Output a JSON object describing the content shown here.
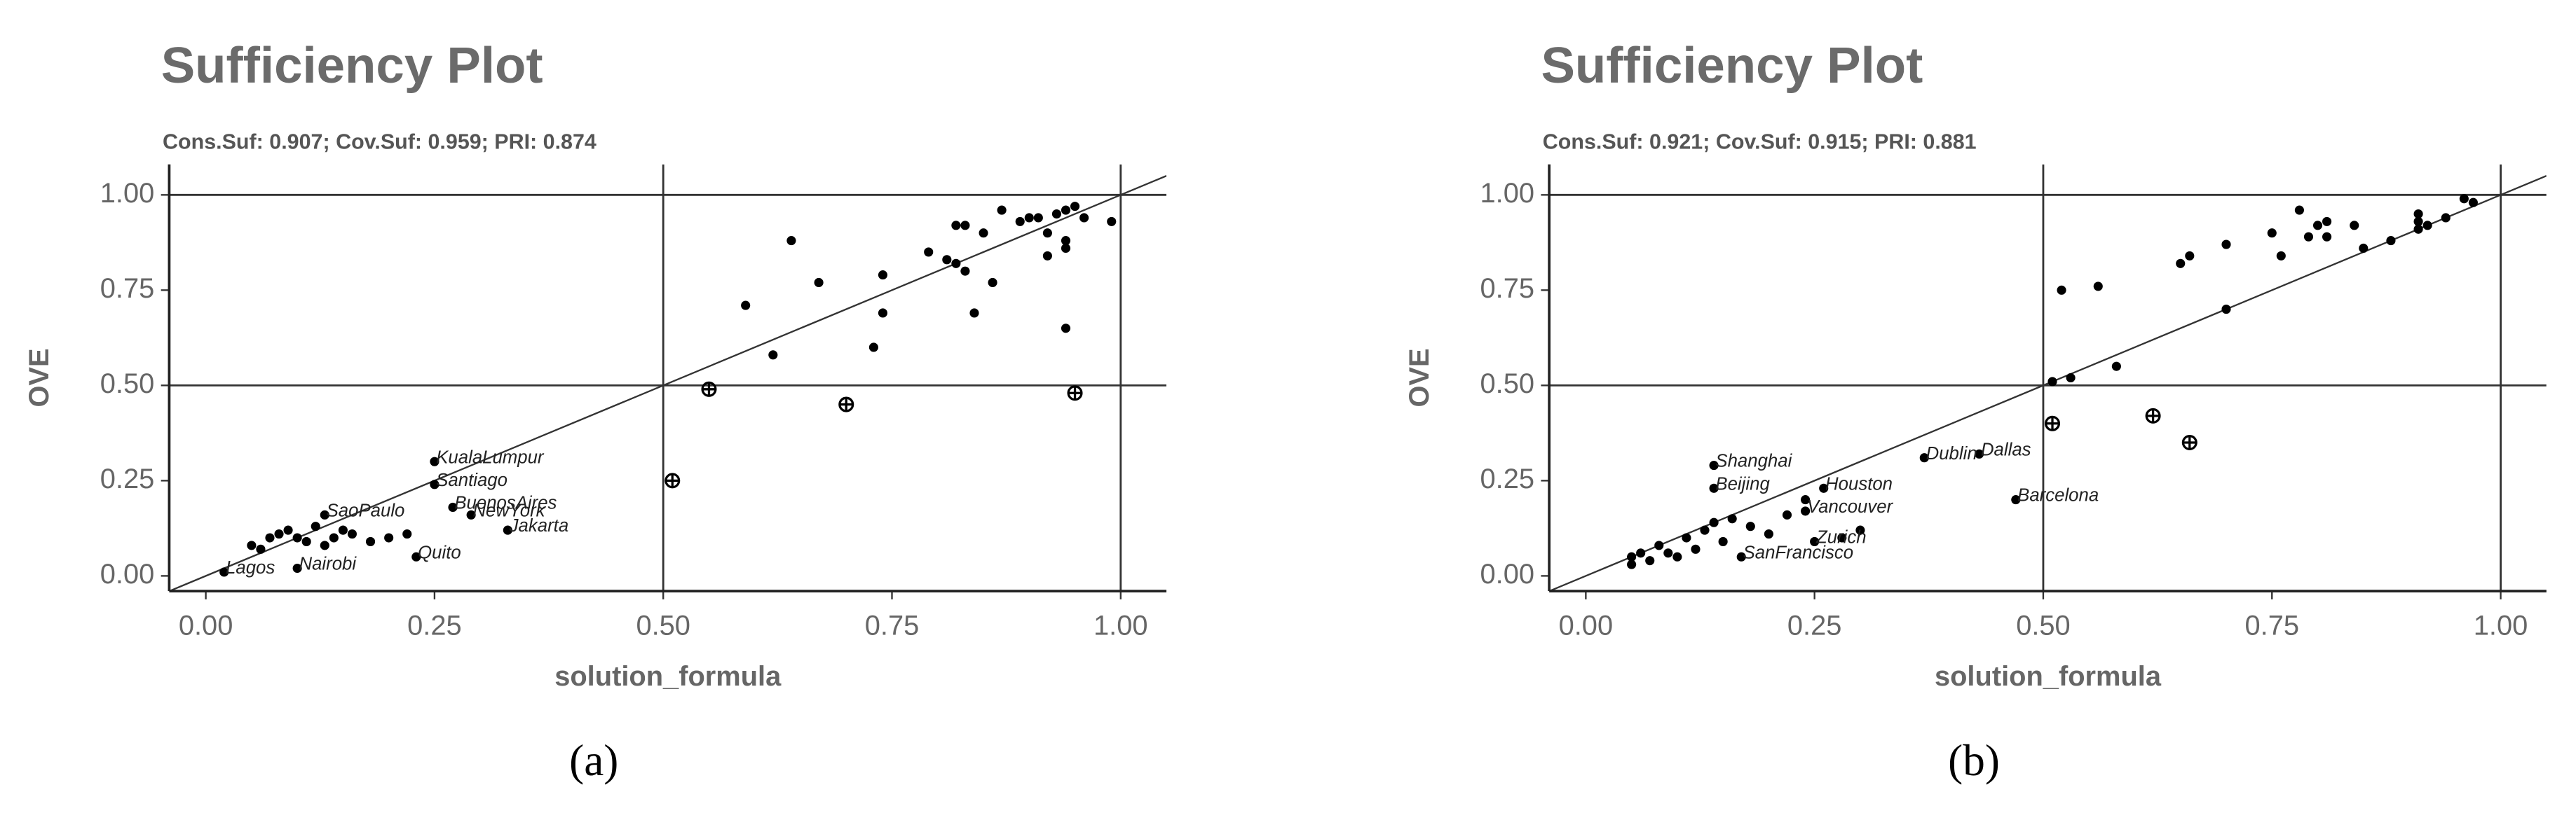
{
  "chart_data": [
    {
      "type": "scatter",
      "title": "Sufficiency Plot",
      "subtitle": "Cons.Suf: 0.907; Cov.Suf: 0.959; PRI: 0.874",
      "x_label": "solution_formula",
      "y_label": "OVE",
      "caption": "(a)",
      "xlim": [
        -0.04,
        1.05
      ],
      "ylim": [
        -0.04,
        1.08
      ],
      "xticks": [
        {
          "value": 0,
          "label": "0.00"
        },
        {
          "value": 0.25,
          "label": "0.25"
        },
        {
          "value": 0.5,
          "label": "0.50"
        },
        {
          "value": 0.75,
          "label": "0.75"
        },
        {
          "value": 1,
          "label": "1.00"
        }
      ],
      "yticks": [
        {
          "value": 0,
          "label": "0.00"
        },
        {
          "value": 0.25,
          "label": "0.25"
        },
        {
          "value": 0.5,
          "label": "0.50"
        },
        {
          "value": 0.75,
          "label": "0.75"
        },
        {
          "value": 1,
          "label": "1.00"
        }
      ],
      "reference_x": [
        0.5,
        1
      ],
      "reference_y": [
        0.5,
        1
      ],
      "diagonal": true,
      "series": [
        {
          "marker": "dot",
          "color": "#000000",
          "x": [
            0.59,
            0.62,
            0.64,
            0.67,
            0.73,
            0.74,
            0.74,
            0.79,
            0.81,
            0.82,
            0.82,
            0.83,
            0.83,
            0.84,
            0.85,
            0.86,
            0.87,
            0.89,
            0.9,
            0.91,
            0.92,
            0.92,
            0.93,
            0.94,
            0.94,
            0.94,
            0.94,
            0.95,
            0.96,
            0.99,
            0.25,
            0.25,
            0.27,
            0.29,
            0.33,
            0.23,
            0.1,
            0.02,
            0.13,
            0.05,
            0.06,
            0.07,
            0.08,
            0.09,
            0.1,
            0.11,
            0.12,
            0.13,
            0.14,
            0.15,
            0.16,
            0.18,
            0.2,
            0.22
          ],
          "y": [
            0.71,
            0.58,
            0.88,
            0.77,
            0.6,
            0.69,
            0.79,
            0.85,
            0.83,
            0.92,
            0.82,
            0.8,
            0.92,
            0.69,
            0.9,
            0.77,
            0.96,
            0.93,
            0.94,
            0.94,
            0.9,
            0.84,
            0.95,
            0.96,
            0.88,
            0.86,
            0.65,
            0.97,
            0.94,
            0.93,
            0.3,
            0.24,
            0.18,
            0.16,
            0.12,
            0.05,
            0.02,
            0.01,
            0.16,
            0.08,
            0.07,
            0.1,
            0.11,
            0.12,
            0.1,
            0.09,
            0.13,
            0.08,
            0.1,
            0.12,
            0.11,
            0.09,
            0.1,
            0.11
          ],
          "labels": [
            null,
            null,
            null,
            null,
            null,
            null,
            null,
            null,
            null,
            null,
            null,
            null,
            null,
            null,
            null,
            null,
            null,
            null,
            null,
            null,
            null,
            null,
            null,
            null,
            null,
            null,
            null,
            null,
            null,
            null,
            "KualaLumpur",
            "Santiago",
            "BuenosAires",
            "NewYork",
            "Jakarta",
            "Quito",
            "Nairobi",
            "Lagos",
            "SaoPaulo",
            null,
            null,
            null,
            null,
            null,
            null,
            null,
            null,
            null,
            null,
            null,
            null,
            null,
            null,
            null
          ]
        },
        {
          "marker": "cross",
          "color": "#000000",
          "x": [
            0.55,
            0.7,
            0.51,
            0.95
          ],
          "y": [
            0.49,
            0.45,
            0.25,
            0.48
          ]
        }
      ]
    },
    {
      "type": "scatter",
      "title": "Sufficiency Plot",
      "subtitle": "Cons.Suf: 0.921; Cov.Suf: 0.915; PRI: 0.881",
      "x_label": "solution_formula",
      "y_label": "OVE",
      "caption": "(b)",
      "xlim": [
        -0.04,
        1.05
      ],
      "ylim": [
        -0.04,
        1.08
      ],
      "xticks": [
        {
          "value": 0,
          "label": "0.00"
        },
        {
          "value": 0.25,
          "label": "0.25"
        },
        {
          "value": 0.5,
          "label": "0.50"
        },
        {
          "value": 0.75,
          "label": "0.75"
        },
        {
          "value": 1,
          "label": "1.00"
        }
      ],
      "yticks": [
        {
          "value": 0,
          "label": "0.00"
        },
        {
          "value": 0.25,
          "label": "0.25"
        },
        {
          "value": 0.5,
          "label": "0.50"
        },
        {
          "value": 0.75,
          "label": "0.75"
        },
        {
          "value": 1,
          "label": "1.00"
        }
      ],
      "reference_x": [
        0.5,
        1
      ],
      "reference_y": [
        0.5,
        1
      ],
      "diagonal": true,
      "series": [
        {
          "marker": "dot",
          "color": "#000000",
          "x": [
            0.52,
            0.56,
            0.58,
            0.53,
            0.51,
            0.65,
            0.66,
            0.7,
            0.7,
            0.75,
            0.76,
            0.78,
            0.79,
            0.8,
            0.81,
            0.81,
            0.84,
            0.85,
            0.88,
            0.91,
            0.91,
            0.91,
            0.92,
            0.94,
            0.96,
            0.97,
            0.14,
            0.14,
            0.37,
            0.43,
            0.47,
            0.26,
            0.24,
            0.17,
            0.25,
            0.05,
            0.05,
            0.06,
            0.07,
            0.08,
            0.09,
            0.1,
            0.11,
            0.12,
            0.13,
            0.14,
            0.15,
            0.16,
            0.18,
            0.2,
            0.22,
            0.24,
            0.28,
            0.3
          ],
          "y": [
            0.75,
            0.76,
            0.55,
            0.52,
            0.51,
            0.82,
            0.84,
            0.87,
            0.7,
            0.9,
            0.84,
            0.96,
            0.89,
            0.92,
            0.93,
            0.89,
            0.92,
            0.86,
            0.88,
            0.95,
            0.93,
            0.91,
            0.92,
            0.94,
            0.99,
            0.98,
            0.29,
            0.23,
            0.31,
            0.32,
            0.2,
            0.23,
            0.17,
            0.05,
            0.09,
            0.03,
            0.05,
            0.06,
            0.04,
            0.08,
            0.06,
            0.05,
            0.1,
            0.07,
            0.12,
            0.14,
            0.09,
            0.15,
            0.13,
            0.11,
            0.16,
            0.2,
            0.1,
            0.12
          ],
          "labels": [
            null,
            null,
            null,
            null,
            null,
            null,
            null,
            null,
            null,
            null,
            null,
            null,
            null,
            null,
            null,
            null,
            null,
            null,
            null,
            null,
            null,
            null,
            null,
            null,
            null,
            null,
            "Shanghai",
            "Beijing",
            "Dublin",
            "Dallas",
            "Barcelona",
            "Houston",
            "Vancouver",
            "SanFrancisco",
            "Zurich",
            null,
            null,
            null,
            null,
            null,
            null,
            null,
            null,
            null,
            null,
            null,
            null,
            null,
            null,
            null,
            null,
            null,
            null,
            null
          ]
        },
        {
          "marker": "cross",
          "color": "#000000",
          "x": [
            0.51,
            0.62,
            0.66
          ],
          "y": [
            0.4,
            0.42,
            0.35
          ]
        }
      ]
    }
  ]
}
